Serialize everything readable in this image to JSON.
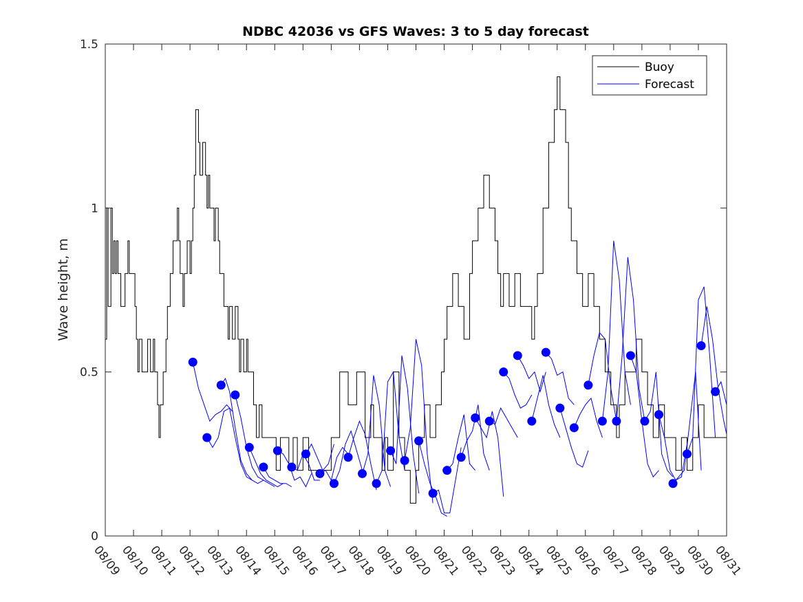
{
  "chart_data": {
    "type": "line",
    "title": "NDBC 42036 vs GFS Waves: 3 to 5 day forecast",
    "xlabel": "",
    "ylabel": "Wave height, m",
    "ylim": [
      0,
      1.5
    ],
    "yticks": [
      0,
      0.5,
      1,
      1.5
    ],
    "ytick_labels": [
      "0",
      "0.5",
      "1",
      "1.5"
    ],
    "xlim_days": [
      0,
      22
    ],
    "xtick_labels": [
      "08/09",
      "08/10",
      "08/11",
      "08/12",
      "08/13",
      "08/14",
      "08/15",
      "08/16",
      "08/17",
      "08/18",
      "08/19",
      "08/20",
      "08/21",
      "08/22",
      "08/23",
      "08/24",
      "08/25",
      "08/26",
      "08/27",
      "08/28",
      "08/29",
      "08/30",
      "08/31"
    ],
    "grid": false,
    "legend": {
      "placement": "top-right",
      "entries": [
        {
          "label": "Buoy",
          "color": "#000000"
        },
        {
          "label": "Forecast",
          "color": "#0000ff"
        }
      ]
    },
    "series": [
      {
        "name": "Buoy",
        "color": "#000000",
        "style": "step",
        "x_days": [
          0,
          0.05,
          0.1,
          0.2,
          0.25,
          0.3,
          0.35,
          0.4,
          0.45,
          0.5,
          0.55,
          0.65,
          0.7,
          0.8,
          0.85,
          0.95,
          1.05,
          1.1,
          1.15,
          1.2,
          1.3,
          1.45,
          1.5,
          1.6,
          1.7,
          1.75,
          1.85,
          1.9,
          1.95,
          2.0,
          2.05,
          2.15,
          2.2,
          2.3,
          2.4,
          2.55,
          2.6,
          2.65,
          2.75,
          2.8,
          2.9,
          3.0,
          3.05,
          3.1,
          3.15,
          3.2,
          3.3,
          3.35,
          3.45,
          3.55,
          3.6,
          3.65,
          3.7,
          3.8,
          3.85,
          3.9,
          4.0,
          4.05,
          4.15,
          4.2,
          4.25,
          4.35,
          4.4,
          4.5,
          4.6,
          4.7,
          4.75,
          4.8,
          4.9,
          5.0,
          5.05,
          5.15,
          5.25,
          5.35,
          5.45,
          5.55,
          5.65,
          5.75,
          5.8,
          6.05,
          6.2,
          6.5,
          6.65,
          6.8,
          7.0,
          7.2,
          7.3,
          7.5,
          7.6,
          7.8,
          8.0,
          8.3,
          8.6,
          8.9,
          9.2,
          9.4,
          9.5,
          9.6,
          9.8,
          9.9,
          10.0,
          10.2,
          10.4,
          10.6,
          10.8,
          11.0,
          11.1,
          11.3,
          11.5,
          11.7,
          11.9,
          12.0,
          12.1,
          12.3,
          12.5,
          12.7,
          12.9,
          13.0,
          13.2,
          13.4,
          13.6,
          13.8,
          13.9,
          14.0,
          14.1,
          14.3,
          14.5,
          14.7,
          14.9,
          15.1,
          15.2,
          15.3,
          15.5,
          15.7,
          15.9,
          16.0,
          16.1,
          16.3,
          16.4,
          16.5,
          16.7,
          16.9,
          17.1,
          17.3,
          17.5,
          17.7,
          17.9,
          18.1,
          18.2,
          18.4,
          18.6,
          18.8,
          19.0,
          19.2,
          19.4,
          19.6,
          19.8,
          20.0,
          20.2,
          20.4,
          20.6,
          20.8,
          21.0,
          21.2,
          21.4
        ],
        "y": [
          0.6,
          1.0,
          0.7,
          1.0,
          0.8,
          0.9,
          0.8,
          0.9,
          0.8,
          0.8,
          0.7,
          0.7,
          0.8,
          0.9,
          0.8,
          0.8,
          0.7,
          0.6,
          0.5,
          0.6,
          0.5,
          0.5,
          0.6,
          0.5,
          0.6,
          0.5,
          0.4,
          0.3,
          0.4,
          0.4,
          0.5,
          0.6,
          0.7,
          0.8,
          0.9,
          1.0,
          0.9,
          0.8,
          0.7,
          0.8,
          0.9,
          0.8,
          0.9,
          1.0,
          1.1,
          1.3,
          1.2,
          1.1,
          1.2,
          1.1,
          1.0,
          1.1,
          1.0,
          1.0,
          0.9,
          1.0,
          0.9,
          0.8,
          0.8,
          0.7,
          0.7,
          0.6,
          0.7,
          0.6,
          0.7,
          0.6,
          0.5,
          0.6,
          0.5,
          0.6,
          0.5,
          0.5,
          0.4,
          0.3,
          0.4,
          0.3,
          0.3,
          0.3,
          0.3,
          0.2,
          0.3,
          0.2,
          0.3,
          0.2,
          0.3,
          0.2,
          0.2,
          0.2,
          0.2,
          0.2,
          0.3,
          0.5,
          0.4,
          0.5,
          0.3,
          0.4,
          0.3,
          0.3,
          0.2,
          0.3,
          0.2,
          0.5,
          0.3,
          0.2,
          0.1,
          0.2,
          0.3,
          0.4,
          0.3,
          0.4,
          0.5,
          0.6,
          0.7,
          0.8,
          0.7,
          0.6,
          0.8,
          0.9,
          1.0,
          1.1,
          1.0,
          0.9,
          0.8,
          0.7,
          0.8,
          0.7,
          0.8,
          0.7,
          0.7,
          0.6,
          0.7,
          0.8,
          1.0,
          1.2,
          1.3,
          1.4,
          1.3,
          1.2,
          1.0,
          0.9,
          0.8,
          0.7,
          0.8,
          0.7,
          0.6,
          0.5,
          0.4,
          0.3,
          0.4,
          0.5,
          0.5,
          0.6,
          0.5,
          0.4,
          0.3,
          0.4,
          0.3,
          0.3,
          0.2,
          0.3,
          0.2,
          0.3,
          0.4,
          0.3,
          0.3,
          0.3
        ],
        "note": "Buoy series is an approximate reconstruction of the hourly step trace"
      },
      {
        "name": "Forecast",
        "color": "#0000ff",
        "style": "line-with-start-markers",
        "forecast_runs": [
          {
            "x_days": [
              3.1,
              3.3,
              3.5,
              3.7,
              3.9,
              4.1,
              4.3,
              4.5
            ],
            "y": [
              0.53,
              0.45,
              0.4,
              0.35,
              0.37,
              0.38,
              0.4,
              0.38
            ]
          },
          {
            "x_days": [
              3.6,
              3.8,
              4.0,
              4.2,
              4.4,
              4.6,
              4.8,
              5.0,
              5.2
            ],
            "y": [
              0.3,
              0.27,
              0.3,
              0.38,
              0.39,
              0.3,
              0.22,
              0.18,
              0.17
            ]
          },
          {
            "x_days": [
              4.1,
              4.25,
              4.4,
              4.6,
              4.8,
              5.0,
              5.2,
              5.4,
              5.6
            ],
            "y": [
              0.46,
              0.48,
              0.44,
              0.33,
              0.23,
              0.19,
              0.17,
              0.16,
              0.17
            ]
          },
          {
            "x_days": [
              4.6,
              4.8,
              5.0,
              5.2,
              5.4,
              5.6,
              5.8,
              6.0
            ],
            "y": [
              0.43,
              0.36,
              0.27,
              0.21,
              0.18,
              0.17,
              0.16,
              0.15
            ]
          },
          {
            "x_days": [
              5.1,
              5.3,
              5.5,
              5.7,
              5.9,
              6.1,
              6.3
            ],
            "y": [
              0.27,
              0.23,
              0.19,
              0.17,
              0.16,
              0.15,
              0.16
            ]
          },
          {
            "x_days": [
              5.6,
              5.8,
              6.0,
              6.2,
              6.4,
              6.6
            ],
            "y": [
              0.21,
              0.18,
              0.17,
              0.16,
              0.16,
              0.15
            ]
          },
          {
            "x_days": [
              6.1,
              6.3,
              6.5,
              6.7,
              6.9,
              7.1,
              7.3
            ],
            "y": [
              0.26,
              0.25,
              0.22,
              0.17,
              0.18,
              0.15,
              0.19
            ]
          },
          {
            "x_days": [
              6.6,
              6.8,
              7.0,
              7.2,
              7.4,
              7.6
            ],
            "y": [
              0.21,
              0.2,
              0.25,
              0.22,
              0.17,
              0.17
            ]
          },
          {
            "x_days": [
              7.1,
              7.3,
              7.5,
              7.7,
              7.9,
              8.1
            ],
            "y": [
              0.25,
              0.28,
              0.24,
              0.2,
              0.22,
              0.28
            ]
          },
          {
            "x_days": [
              7.6,
              7.8,
              8.0,
              8.2,
              8.4,
              8.6
            ],
            "y": [
              0.19,
              0.2,
              0.17,
              0.24,
              0.27,
              0.25
            ]
          },
          {
            "x_days": [
              8.1,
              8.3,
              8.5,
              8.7,
              8.9,
              9.1
            ],
            "y": [
              0.16,
              0.2,
              0.28,
              0.32,
              0.26,
              0.2
            ]
          },
          {
            "x_days": [
              8.6,
              8.8,
              9.0,
              9.2,
              9.4,
              9.6
            ],
            "y": [
              0.24,
              0.3,
              0.35,
              0.31,
              0.22,
              0.14
            ]
          },
          {
            "x_days": [
              9.1,
              9.3,
              9.5,
              9.7,
              9.9,
              10.1
            ],
            "y": [
              0.19,
              0.25,
              0.49,
              0.4,
              0.2,
              0.15
            ]
          },
          {
            "x_days": [
              9.6,
              9.8,
              10.0,
              10.2,
              10.4,
              10.6
            ],
            "y": [
              0.16,
              0.2,
              0.47,
              0.5,
              0.3,
              0.2
            ]
          },
          {
            "x_days": [
              10.1,
              10.3,
              10.5,
              10.7,
              10.9,
              11.1
            ],
            "y": [
              0.26,
              0.22,
              0.55,
              0.45,
              0.25,
              0.13
            ]
          },
          {
            "x_days": [
              10.6,
              10.8,
              11.0,
              11.2,
              11.4,
              11.6
            ],
            "y": [
              0.23,
              0.33,
              0.6,
              0.52,
              0.25,
              0.1
            ]
          },
          {
            "x_days": [
              11.1,
              11.3,
              11.5,
              11.7,
              11.9,
              12.1
            ],
            "y": [
              0.29,
              0.22,
              0.16,
              0.12,
              0.07,
              0.06
            ]
          },
          {
            "x_days": [
              11.6,
              11.8,
              12.0,
              12.2,
              12.4,
              12.6
            ],
            "y": [
              0.13,
              0.14,
              0.07,
              0.07,
              0.17,
              0.27
            ]
          },
          {
            "x_days": [
              12.1,
              12.3,
              12.5,
              12.7,
              12.9,
              13.1
            ],
            "y": [
              0.2,
              0.22,
              0.3,
              0.37,
              0.22,
              0.2
            ]
          },
          {
            "x_days": [
              12.6,
              12.8,
              13.0,
              13.2,
              13.4,
              13.6
            ],
            "y": [
              0.24,
              0.29,
              0.32,
              0.4,
              0.25,
              0.2
            ]
          },
          {
            "x_days": [
              13.1,
              13.3,
              13.5,
              13.7,
              13.9,
              14.1
            ],
            "y": [
              0.36,
              0.33,
              0.3,
              0.38,
              0.3,
              0.12
            ]
          },
          {
            "x_days": [
              13.6,
              13.8,
              14.0,
              14.2,
              14.4,
              14.6
            ],
            "y": [
              0.35,
              0.34,
              0.39,
              0.36,
              0.33,
              0.3
            ]
          },
          {
            "x_days": [
              14.1,
              14.3,
              14.5,
              14.7,
              14.9,
              15.1
            ],
            "y": [
              0.5,
              0.48,
              0.43,
              0.39,
              0.4,
              0.43
            ]
          },
          {
            "x_days": [
              14.6,
              14.8,
              15.0,
              15.2,
              15.4,
              15.6
            ],
            "y": [
              0.55,
              0.52,
              0.48,
              0.5,
              0.44,
              0.5
            ]
          },
          {
            "x_days": [
              15.1,
              15.3,
              15.5,
              15.7,
              15.9,
              16.1
            ],
            "y": [
              0.35,
              0.42,
              0.49,
              0.4,
              0.34,
              0.3
            ]
          },
          {
            "x_days": [
              15.6,
              15.8,
              16.0,
              16.2,
              16.4,
              16.6
            ],
            "y": [
              0.56,
              0.54,
              0.49,
              0.5,
              0.42,
              0.4
            ]
          },
          {
            "x_days": [
              16.1,
              16.3,
              16.5,
              16.7,
              16.9,
              17.1
            ],
            "y": [
              0.39,
              0.33,
              0.27,
              0.22,
              0.21,
              0.26
            ]
          },
          {
            "x_days": [
              16.6,
              16.8,
              17.0,
              17.2,
              17.4,
              17.6
            ],
            "y": [
              0.33,
              0.37,
              0.4,
              0.42,
              0.35,
              0.3
            ]
          },
          {
            "x_days": [
              17.1,
              17.3,
              17.5,
              17.7,
              17.9,
              18.1
            ],
            "y": [
              0.46,
              0.55,
              0.62,
              0.6,
              0.45,
              0.35
            ]
          },
          {
            "x_days": [
              17.6,
              17.8,
              18.0,
              18.2,
              18.4,
              18.6
            ],
            "y": [
              0.35,
              0.5,
              0.9,
              0.78,
              0.5,
              0.4
            ]
          },
          {
            "x_days": [
              18.1,
              18.3,
              18.5,
              18.7,
              18.9,
              19.1
            ],
            "y": [
              0.35,
              0.55,
              0.85,
              0.72,
              0.45,
              0.35
            ]
          },
          {
            "x_days": [
              18.6,
              18.8,
              19.0,
              19.2,
              19.4,
              19.6
            ],
            "y": [
              0.55,
              0.5,
              0.35,
              0.22,
              0.18,
              0.2
            ]
          },
          {
            "x_days": [
              19.1,
              19.3,
              19.5,
              19.7,
              19.9,
              20.1
            ],
            "y": [
              0.35,
              0.38,
              0.5,
              0.25,
              0.2,
              0.18
            ]
          },
          {
            "x_days": [
              19.6,
              19.8,
              20.0,
              20.2,
              20.4,
              20.6
            ],
            "y": [
              0.37,
              0.3,
              0.2,
              0.17,
              0.18,
              0.28
            ]
          },
          {
            "x_days": [
              20.1,
              20.3,
              20.5,
              20.7,
              20.9,
              21.1
            ],
            "y": [
              0.16,
              0.18,
              0.2,
              0.35,
              0.5,
              0.2
            ]
          },
          {
            "x_days": [
              20.6,
              20.8,
              21.0,
              21.2,
              21.4,
              21.6
            ],
            "y": [
              0.25,
              0.3,
              0.72,
              0.76,
              0.55,
              0.3
            ]
          },
          {
            "x_days": [
              21.1,
              21.3,
              21.5,
              21.7,
              21.9,
              22.0
            ],
            "y": [
              0.58,
              0.7,
              0.6,
              0.45,
              0.35,
              0.31
            ]
          },
          {
            "x_days": [
              21.6,
              21.8,
              22.0
            ],
            "y": [
              0.44,
              0.47,
              0.4
            ]
          }
        ]
      }
    ]
  }
}
